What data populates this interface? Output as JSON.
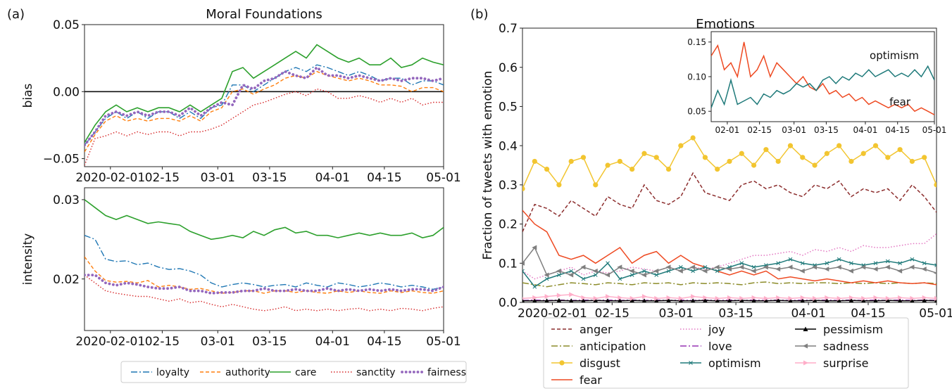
{
  "panels": {
    "a_label": "(a)",
    "b_label": "(b)"
  },
  "colors": {
    "loyalty": "#1f77b4",
    "authority": "#ff7f0e",
    "care": "#2ca02c",
    "sanctity": "#d62728",
    "fairness": "#9467bd",
    "anger": "#8c2d2d",
    "anticipation": "#8c8c2a",
    "disgust": "#f2c530",
    "fear": "#ee4a22",
    "joy": "#e377c2",
    "love": "#9632b4",
    "optimism": "#1f7a7a",
    "pessimism": "#000000",
    "sadness": "#7f7f7f",
    "surprise": "#ffaec9"
  },
  "chart_data": [
    {
      "id": "bias",
      "type": "line",
      "title": "Moral Foundations",
      "ylabel": "bias",
      "xlabel": "",
      "ylim": [
        -0.056,
        0.05
      ],
      "yticks": [
        -0.05,
        0.0,
        0.05
      ],
      "ytick_labels": [
        "−0.05",
        "0.00",
        "0.05"
      ],
      "xticks": [
        "2020-02-01",
        "02-15",
        "03-01",
        "03-15",
        "04-01",
        "04-15",
        "05-01"
      ],
      "x_start": "2020-01-25",
      "x_end": "2020-05-01",
      "hline": 0,
      "series": [
        {
          "name": "loyalty",
          "values": [
            -0.04,
            -0.03,
            -0.02,
            -0.015,
            -0.02,
            -0.015,
            -0.02,
            -0.015,
            -0.015,
            -0.02,
            -0.015,
            -0.02,
            -0.012,
            -0.01,
            0.005,
            0.005,
            0.0,
            0.005,
            0.01,
            0.015,
            0.018,
            0.015,
            0.02,
            0.018,
            0.015,
            0.012,
            0.015,
            0.012,
            0.008,
            0.01,
            0.01,
            0.005,
            0.008,
            0.008,
            0.005
          ]
        },
        {
          "name": "authority",
          "values": [
            -0.045,
            -0.032,
            -0.022,
            -0.018,
            -0.022,
            -0.02,
            -0.022,
            -0.02,
            -0.02,
            -0.022,
            -0.018,
            -0.022,
            -0.015,
            -0.012,
            0.0,
            0.002,
            -0.002,
            0.002,
            0.005,
            0.01,
            0.012,
            0.01,
            0.015,
            0.012,
            0.01,
            0.008,
            0.01,
            0.008,
            0.005,
            0.005,
            0.004,
            0.0,
            0.003,
            0.003,
            0.0
          ]
        },
        {
          "name": "care",
          "values": [
            -0.038,
            -0.025,
            -0.015,
            -0.01,
            -0.015,
            -0.012,
            -0.015,
            -0.012,
            -0.012,
            -0.015,
            -0.01,
            -0.015,
            -0.01,
            -0.005,
            0.015,
            0.018,
            0.01,
            0.015,
            0.02,
            0.025,
            0.03,
            0.025,
            0.035,
            0.03,
            0.025,
            0.022,
            0.025,
            0.02,
            0.02,
            0.025,
            0.018,
            0.02,
            0.025,
            0.022,
            0.02
          ]
        },
        {
          "name": "sanctity",
          "values": [
            -0.055,
            -0.035,
            -0.033,
            -0.03,
            -0.033,
            -0.03,
            -0.032,
            -0.03,
            -0.03,
            -0.033,
            -0.03,
            -0.03,
            -0.028,
            -0.025,
            -0.02,
            -0.015,
            -0.01,
            -0.008,
            -0.005,
            -0.002,
            0.0,
            -0.003,
            0.002,
            0.0,
            -0.005,
            -0.005,
            -0.003,
            -0.005,
            -0.008,
            -0.005,
            -0.008,
            -0.005,
            -0.01,
            -0.008,
            -0.008
          ]
        },
        {
          "name": "fairness",
          "values": [
            -0.04,
            -0.03,
            -0.018,
            -0.015,
            -0.018,
            -0.015,
            -0.018,
            -0.015,
            -0.015,
            -0.018,
            -0.012,
            -0.018,
            -0.012,
            -0.008,
            -0.01,
            0.005,
            0.002,
            0.008,
            0.01,
            0.015,
            0.012,
            0.01,
            0.018,
            0.012,
            0.012,
            0.01,
            0.012,
            0.01,
            0.008,
            0.01,
            0.008,
            0.01,
            0.01,
            0.008,
            0.01
          ]
        }
      ]
    },
    {
      "id": "intensity",
      "type": "line",
      "title": "",
      "ylabel": "intensity",
      "xlabel": "",
      "ylim": [
        0.0135,
        0.0315
      ],
      "yticks": [
        0.02,
        0.03
      ],
      "ytick_labels": [
        "0.02",
        "0.03"
      ],
      "xticks": [
        "2020-02-01",
        "02-15",
        "03-01",
        "03-15",
        "04-01",
        "04-15",
        "05-01"
      ],
      "x_start": "2020-01-25",
      "x_end": "2020-05-01",
      "series": [
        {
          "name": "loyalty",
          "values": [
            0.0255,
            0.025,
            0.0225,
            0.0222,
            0.0223,
            0.0218,
            0.022,
            0.0215,
            0.0212,
            0.0213,
            0.021,
            0.0205,
            0.0195,
            0.019,
            0.0193,
            0.0195,
            0.0193,
            0.019,
            0.0192,
            0.0193,
            0.019,
            0.0195,
            0.0192,
            0.019,
            0.0195,
            0.0193,
            0.019,
            0.0192,
            0.0195,
            0.0193,
            0.019,
            0.0192,
            0.019,
            0.0187,
            0.019
          ]
        },
        {
          "name": "authority",
          "values": [
            0.0228,
            0.021,
            0.0198,
            0.0196,
            0.0197,
            0.0195,
            0.0198,
            0.019,
            0.0192,
            0.019,
            0.0187,
            0.0188,
            0.0185,
            0.0182,
            0.0183,
            0.0185,
            0.0185,
            0.0182,
            0.0185,
            0.0185,
            0.0183,
            0.0185,
            0.0183,
            0.0182,
            0.0185,
            0.0183,
            0.0185,
            0.0183,
            0.0182,
            0.0185,
            0.0183,
            0.0185,
            0.0183,
            0.0182,
            0.0185
          ]
        },
        {
          "name": "care",
          "values": [
            0.03,
            0.029,
            0.028,
            0.0275,
            0.028,
            0.0275,
            0.027,
            0.0272,
            0.027,
            0.0268,
            0.026,
            0.0255,
            0.025,
            0.0252,
            0.0255,
            0.0252,
            0.026,
            0.0255,
            0.0262,
            0.0265,
            0.0258,
            0.026,
            0.0255,
            0.0255,
            0.0252,
            0.0255,
            0.0258,
            0.0255,
            0.0258,
            0.0255,
            0.0255,
            0.0258,
            0.0252,
            0.0255,
            0.0265
          ]
        },
        {
          "name": "sanctity",
          "values": [
            0.0205,
            0.0195,
            0.0185,
            0.0182,
            0.018,
            0.0178,
            0.0178,
            0.0175,
            0.0172,
            0.0175,
            0.017,
            0.0172,
            0.0168,
            0.0165,
            0.0168,
            0.0165,
            0.0162,
            0.016,
            0.0162,
            0.0165,
            0.016,
            0.0162,
            0.016,
            0.0162,
            0.016,
            0.0162,
            0.0163,
            0.016,
            0.0162,
            0.016,
            0.0163,
            0.0162,
            0.016,
            0.0163,
            0.0165
          ]
        },
        {
          "name": "fairness",
          "values": [
            0.0205,
            0.0205,
            0.0195,
            0.0192,
            0.0195,
            0.0193,
            0.019,
            0.0188,
            0.0188,
            0.019,
            0.0185,
            0.0185,
            0.0182,
            0.0183,
            0.0183,
            0.0185,
            0.0185,
            0.0188,
            0.0185,
            0.0185,
            0.0187,
            0.0185,
            0.0185,
            0.0188,
            0.0185,
            0.0187,
            0.0185,
            0.0187,
            0.0185,
            0.0187,
            0.0185,
            0.0187,
            0.0187,
            0.0185,
            0.019
          ]
        }
      ]
    },
    {
      "id": "emotions",
      "type": "line",
      "title": "Emotions",
      "ylabel": "Fraction of tweets with emotion",
      "xlabel": "",
      "ylim": [
        0.0,
        0.7
      ],
      "yticks": [
        0.0,
        0.1,
        0.2,
        0.3,
        0.4,
        0.5,
        0.6,
        0.7
      ],
      "ytick_labels": [
        "0.0",
        "0.1",
        "0.2",
        "0.3",
        "0.4",
        "0.5",
        "0.6",
        "0.7"
      ],
      "xticks": [
        "2020-02-01",
        "02-15",
        "03-01",
        "03-15",
        "04-01",
        "04-15",
        "05-01"
      ],
      "x_start": "2020-01-25",
      "x_end": "2020-05-01",
      "series": [
        {
          "name": "anger",
          "values": [
            0.18,
            0.25,
            0.24,
            0.22,
            0.26,
            0.24,
            0.22,
            0.27,
            0.25,
            0.24,
            0.3,
            0.26,
            0.25,
            0.27,
            0.33,
            0.28,
            0.27,
            0.26,
            0.3,
            0.31,
            0.29,
            0.3,
            0.28,
            0.27,
            0.3,
            0.29,
            0.31,
            0.27,
            0.29,
            0.28,
            0.29,
            0.26,
            0.3,
            0.27,
            0.23
          ]
        },
        {
          "name": "anticipation",
          "values": [
            0.05,
            0.045,
            0.04,
            0.045,
            0.05,
            0.048,
            0.045,
            0.05,
            0.048,
            0.045,
            0.05,
            0.048,
            0.05,
            0.045,
            0.05,
            0.048,
            0.05,
            0.048,
            0.045,
            0.05,
            0.052,
            0.048,
            0.05,
            0.048,
            0.05,
            0.05,
            0.048,
            0.05,
            0.048,
            0.05,
            0.048,
            0.05,
            0.048,
            0.05,
            0.048
          ]
        },
        {
          "name": "disgust",
          "values": [
            0.29,
            0.36,
            0.34,
            0.3,
            0.36,
            0.37,
            0.3,
            0.35,
            0.36,
            0.34,
            0.38,
            0.37,
            0.34,
            0.4,
            0.42,
            0.37,
            0.34,
            0.36,
            0.38,
            0.35,
            0.39,
            0.36,
            0.4,
            0.37,
            0.35,
            0.38,
            0.4,
            0.36,
            0.38,
            0.4,
            0.37,
            0.39,
            0.36,
            0.37,
            0.3
          ]
        },
        {
          "name": "fear",
          "values": [
            0.235,
            0.2,
            0.18,
            0.12,
            0.11,
            0.12,
            0.1,
            0.12,
            0.14,
            0.1,
            0.12,
            0.13,
            0.1,
            0.12,
            0.1,
            0.09,
            0.08,
            0.07,
            0.08,
            0.07,
            0.08,
            0.06,
            0.065,
            0.06,
            0.055,
            0.06,
            0.055,
            0.05,
            0.055,
            0.05,
            0.055,
            0.05,
            0.048,
            0.05,
            0.045
          ]
        },
        {
          "name": "joy",
          "values": [
            0.08,
            0.06,
            0.07,
            0.08,
            0.09,
            0.07,
            0.08,
            0.075,
            0.08,
            0.09,
            0.085,
            0.08,
            0.09,
            0.08,
            0.09,
            0.085,
            0.09,
            0.1,
            0.11,
            0.12,
            0.12,
            0.125,
            0.13,
            0.12,
            0.135,
            0.13,
            0.14,
            0.13,
            0.145,
            0.14,
            0.14,
            0.145,
            0.15,
            0.15,
            0.175
          ]
        },
        {
          "name": "love",
          "values": [
            0.005,
            0.006,
            0.005,
            0.006,
            0.005,
            0.006,
            0.005,
            0.006,
            0.005,
            0.006,
            0.005,
            0.006,
            0.005,
            0.006,
            0.005,
            0.006,
            0.005,
            0.006,
            0.005,
            0.006,
            0.005,
            0.006,
            0.005,
            0.006,
            0.005,
            0.006,
            0.005,
            0.006,
            0.005,
            0.006,
            0.005,
            0.006,
            0.005,
            0.006,
            0.005
          ]
        },
        {
          "name": "optimism",
          "values": [
            0.08,
            0.04,
            0.06,
            0.07,
            0.08,
            0.06,
            0.07,
            0.1,
            0.06,
            0.07,
            0.08,
            0.07,
            0.08,
            0.09,
            0.08,
            0.09,
            0.08,
            0.09,
            0.1,
            0.09,
            0.095,
            0.1,
            0.11,
            0.1,
            0.095,
            0.1,
            0.11,
            0.1,
            0.095,
            0.1,
            0.105,
            0.1,
            0.11,
            0.1,
            0.095
          ]
        },
        {
          "name": "pessimism",
          "values": [
            0.004,
            0.004,
            0.004,
            0.005,
            0.004,
            0.004,
            0.005,
            0.004,
            0.004,
            0.005,
            0.004,
            0.004,
            0.005,
            0.004,
            0.004,
            0.005,
            0.004,
            0.004,
            0.005,
            0.004,
            0.004,
            0.005,
            0.004,
            0.004,
            0.005,
            0.004,
            0.004,
            0.005,
            0.004,
            0.004,
            0.005,
            0.004,
            0.004,
            0.005,
            0.004
          ]
        },
        {
          "name": "sadness",
          "values": [
            0.1,
            0.14,
            0.07,
            0.08,
            0.07,
            0.09,
            0.08,
            0.07,
            0.09,
            0.08,
            0.07,
            0.08,
            0.09,
            0.08,
            0.09,
            0.08,
            0.09,
            0.085,
            0.09,
            0.08,
            0.09,
            0.085,
            0.09,
            0.08,
            0.09,
            0.085,
            0.09,
            0.08,
            0.09,
            0.085,
            0.09,
            0.08,
            0.09,
            0.085,
            0.075
          ]
        },
        {
          "name": "surprise",
          "values": [
            0.01,
            0.012,
            0.015,
            0.018,
            0.02,
            0.012,
            0.01,
            0.015,
            0.012,
            0.01,
            0.015,
            0.01,
            0.012,
            0.01,
            0.015,
            0.012,
            0.01,
            0.012,
            0.01,
            0.012,
            0.01,
            0.012,
            0.01,
            0.012,
            0.01,
            0.012,
            0.01,
            0.012,
            0.01,
            0.012,
            0.01,
            0.012,
            0.01,
            0.012,
            0.01
          ]
        }
      ]
    },
    {
      "id": "inset",
      "type": "line",
      "title": "",
      "ylabel": "",
      "xlabel": "",
      "ylim": [
        0.035,
        0.165
      ],
      "yticks": [
        0.05,
        0.1,
        0.15
      ],
      "ytick_labels": [
        "0.05",
        "0.10",
        "0.15"
      ],
      "xticks": [
        "02-01",
        "02-15",
        "03-01",
        "03-15",
        "04-01",
        "04-15",
        "05-01"
      ],
      "x_start": "2020-01-25",
      "x_end": "2020-05-01",
      "annotations": [
        "optimism",
        "fear"
      ],
      "series": [
        {
          "name": "fear",
          "values": [
            0.13,
            0.145,
            0.11,
            0.12,
            0.1,
            0.15,
            0.1,
            0.11,
            0.13,
            0.1,
            0.12,
            0.11,
            0.1,
            0.09,
            0.1,
            0.085,
            0.08,
            0.09,
            0.075,
            0.08,
            0.07,
            0.075,
            0.065,
            0.07,
            0.06,
            0.065,
            0.06,
            0.055,
            0.06,
            0.055,
            0.06,
            0.05,
            0.055,
            0.05,
            0.045
          ]
        },
        {
          "name": "optimism",
          "values": [
            0.055,
            0.08,
            0.06,
            0.095,
            0.06,
            0.065,
            0.07,
            0.06,
            0.075,
            0.07,
            0.08,
            0.075,
            0.08,
            0.09,
            0.085,
            0.09,
            0.08,
            0.095,
            0.1,
            0.09,
            0.1,
            0.095,
            0.105,
            0.1,
            0.11,
            0.1,
            0.105,
            0.11,
            0.1,
            0.105,
            0.1,
            0.11,
            0.1,
            0.115,
            0.095
          ]
        }
      ]
    }
  ],
  "legend_a": [
    "loyalty",
    "authority",
    "care",
    "sanctity",
    "fairness"
  ],
  "legend_b": [
    "anger",
    "anticipation",
    "disgust",
    "fear",
    "joy",
    "love",
    "optimism",
    "pessimism",
    "sadness",
    "surprise"
  ]
}
